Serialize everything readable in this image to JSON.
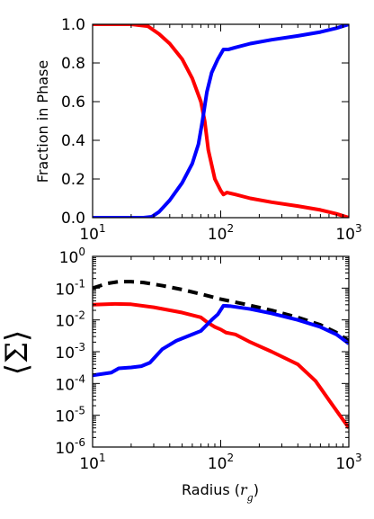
{
  "chart_data": [
    {
      "type": "line",
      "ylabel": "Fraction in Phase",
      "x_scale": "log",
      "xlim": [
        10,
        1000
      ],
      "ylim": [
        0,
        1
      ],
      "x_tick_labels": [
        {
          "x": 10,
          "base": "10",
          "exp": "1"
        },
        {
          "x": 100,
          "base": "10",
          "exp": "2"
        },
        {
          "x": 1000,
          "base": "10",
          "exp": "3"
        }
      ],
      "y_tick_labels": [
        {
          "y": 0.0,
          "label": "0.0"
        },
        {
          "y": 0.2,
          "label": "0.2"
        },
        {
          "y": 0.4,
          "label": "0.4"
        },
        {
          "y": 0.6,
          "label": "0.6"
        },
        {
          "y": 0.8,
          "label": "0.8"
        },
        {
          "y": 1.0,
          "label": "1.0"
        }
      ],
      "series": [
        {
          "color": "#ff0000",
          "style": "solid",
          "points": [
            [
              10,
              1.0
            ],
            [
              20,
              1.0
            ],
            [
              27,
              0.99
            ],
            [
              33,
              0.95
            ],
            [
              40,
              0.9
            ],
            [
              50,
              0.82
            ],
            [
              60,
              0.72
            ],
            [
              70,
              0.6
            ],
            [
              75,
              0.5
            ],
            [
              80,
              0.35
            ],
            [
              90,
              0.2
            ],
            [
              100,
              0.14
            ],
            [
              105,
              0.12
            ],
            [
              112,
              0.13
            ],
            [
              130,
              0.12
            ],
            [
              170,
              0.1
            ],
            [
              250,
              0.08
            ],
            [
              400,
              0.06
            ],
            [
              600,
              0.04
            ],
            [
              800,
              0.02
            ],
            [
              1000,
              0.0
            ]
          ]
        },
        {
          "color": "#0000ff",
          "style": "solid",
          "points": [
            [
              10,
              0.0
            ],
            [
              25,
              0.0
            ],
            [
              29,
              0.005
            ],
            [
              33,
              0.03
            ],
            [
              40,
              0.09
            ],
            [
              50,
              0.18
            ],
            [
              60,
              0.28
            ],
            [
              67,
              0.38
            ],
            [
              72,
              0.5
            ],
            [
              78,
              0.65
            ],
            [
              85,
              0.75
            ],
            [
              95,
              0.82
            ],
            [
              105,
              0.87
            ],
            [
              115,
              0.87
            ],
            [
              130,
              0.88
            ],
            [
              170,
              0.9
            ],
            [
              250,
              0.92
            ],
            [
              400,
              0.94
            ],
            [
              600,
              0.96
            ],
            [
              800,
              0.98
            ],
            [
              1000,
              1.0
            ]
          ]
        }
      ]
    },
    {
      "type": "line",
      "xlabel": "Radius",
      "xlabel_var": "r",
      "xlabel_sub": "g",
      "ylabel": "Σ",
      "x_scale": "log",
      "y_scale": "log",
      "xlim": [
        10,
        1000
      ],
      "ylim": [
        1e-06,
        1
      ],
      "x_tick_labels": [
        {
          "x": 10,
          "base": "10",
          "exp": "1"
        },
        {
          "x": 100,
          "base": "10",
          "exp": "2"
        },
        {
          "x": 1000,
          "base": "10",
          "exp": "3"
        }
      ],
      "y_tick_labels": [
        {
          "y": 1e-06,
          "base": "10",
          "exp": "-6"
        },
        {
          "y": 1e-05,
          "base": "10",
          "exp": "-5"
        },
        {
          "y": 0.0001,
          "base": "10",
          "exp": "-4"
        },
        {
          "y": 0.001,
          "base": "10",
          "exp": "-3"
        },
        {
          "y": 0.01,
          "base": "10",
          "exp": "-2"
        },
        {
          "y": 0.1,
          "base": "10",
          "exp": "-1"
        },
        {
          "y": 1,
          "base": "10",
          "exp": "0"
        }
      ],
      "series": [
        {
          "color": "#000000",
          "style": "dashed",
          "points": [
            [
              10,
              0.1
            ],
            [
              13,
              0.14
            ],
            [
              16,
              0.16
            ],
            [
              20,
              0.16
            ],
            [
              25,
              0.15
            ],
            [
              35,
              0.12
            ],
            [
              50,
              0.09
            ],
            [
              70,
              0.065
            ],
            [
              100,
              0.045
            ],
            [
              150,
              0.032
            ],
            [
              250,
              0.02
            ],
            [
              400,
              0.012
            ],
            [
              600,
              0.007
            ],
            [
              800,
              0.004
            ],
            [
              1000,
              0.0022
            ]
          ]
        },
        {
          "color": "#ff0000",
          "style": "solid",
          "points": [
            [
              10,
              0.03
            ],
            [
              15,
              0.032
            ],
            [
              20,
              0.031
            ],
            [
              30,
              0.025
            ],
            [
              50,
              0.017
            ],
            [
              70,
              0.012
            ],
            [
              80,
              0.008
            ],
            [
              90,
              0.006
            ],
            [
              100,
              0.005
            ],
            [
              110,
              0.004
            ],
            [
              130,
              0.0035
            ],
            [
              170,
              0.002
            ],
            [
              250,
              0.001
            ],
            [
              400,
              0.0004
            ],
            [
              550,
              0.00012
            ],
            [
              700,
              3e-05
            ],
            [
              850,
              1e-05
            ],
            [
              1000,
              4e-06
            ]
          ]
        },
        {
          "color": "#0000ff",
          "style": "solid",
          "points": [
            [
              10,
              0.00018
            ],
            [
              14,
              0.00022
            ],
            [
              16,
              0.0003
            ],
            [
              20,
              0.00032
            ],
            [
              24,
              0.00035
            ],
            [
              28,
              0.00045
            ],
            [
              35,
              0.0012
            ],
            [
              45,
              0.0022
            ],
            [
              60,
              0.0035
            ],
            [
              70,
              0.0045
            ],
            [
              78,
              0.007
            ],
            [
              85,
              0.01
            ],
            [
              95,
              0.015
            ],
            [
              105,
              0.028
            ],
            [
              120,
              0.027
            ],
            [
              170,
              0.022
            ],
            [
              250,
              0.016
            ],
            [
              400,
              0.01
            ],
            [
              600,
              0.006
            ],
            [
              800,
              0.0035
            ],
            [
              1000,
              0.0018
            ]
          ]
        }
      ]
    }
  ]
}
